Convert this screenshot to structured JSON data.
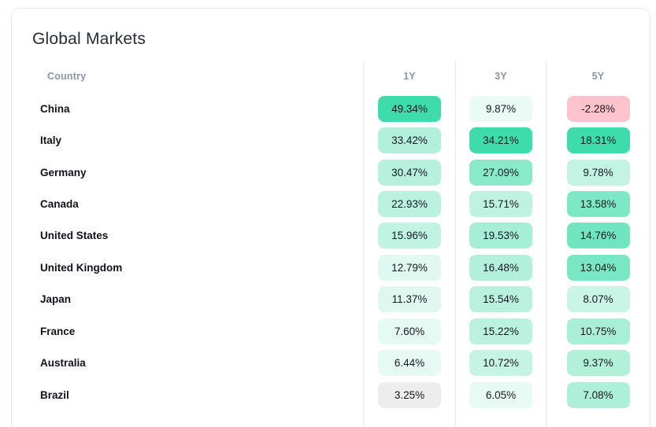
{
  "card": {
    "title": "Global Markets"
  },
  "table": {
    "headers": {
      "country": "Country",
      "periods": [
        "1Y",
        "3Y",
        "5Y"
      ]
    },
    "rows": [
      {
        "country": "China",
        "cells": [
          {
            "value": "49.34%",
            "bg": "#3edcab"
          },
          {
            "value": "9.87%",
            "bg": "#eafbf5"
          },
          {
            "value": "-2.28%",
            "bg": "#ffc3ce"
          }
        ]
      },
      {
        "country": "Italy",
        "cells": [
          {
            "value": "33.42%",
            "bg": "#b3f0db"
          },
          {
            "value": "34.21%",
            "bg": "#3edcab"
          },
          {
            "value": "18.31%",
            "bg": "#3edcab"
          }
        ]
      },
      {
        "country": "Germany",
        "cells": [
          {
            "value": "30.47%",
            "bg": "#b7f1de"
          },
          {
            "value": "27.09%",
            "bg": "#89eaca"
          },
          {
            "value": "9.78%",
            "bg": "#c3f3e2"
          }
        ]
      },
      {
        "country": "Canada",
        "cells": [
          {
            "value": "22.93%",
            "bg": "#bbf2df"
          },
          {
            "value": "15.71%",
            "bg": "#bff2e1"
          },
          {
            "value": "13.58%",
            "bg": "#7de8c5"
          }
        ]
      },
      {
        "country": "United States",
        "cells": [
          {
            "value": "15.96%",
            "bg": "#c1f3e2"
          },
          {
            "value": "19.53%",
            "bg": "#a7eed6"
          },
          {
            "value": "14.76%",
            "bg": "#70e5c0"
          }
        ]
      },
      {
        "country": "United Kingdom",
        "cells": [
          {
            "value": "12.79%",
            "bg": "#e0f9f0"
          },
          {
            "value": "16.48%",
            "bg": "#b2f0db"
          },
          {
            "value": "13.04%",
            "bg": "#79e7c3"
          }
        ]
      },
      {
        "country": "Japan",
        "cells": [
          {
            "value": "11.37%",
            "bg": "#def8ef"
          },
          {
            "value": "15.54%",
            "bg": "#b9f1de"
          },
          {
            "value": "8.07%",
            "bg": "#c9f5e6"
          }
        ]
      },
      {
        "country": "France",
        "cells": [
          {
            "value": "7.60%",
            "bg": "#e5faf2"
          },
          {
            "value": "15.22%",
            "bg": "#bbf2df"
          },
          {
            "value": "10.75%",
            "bg": "#a9efd7"
          }
        ]
      },
      {
        "country": "Australia",
        "cells": [
          {
            "value": "6.44%",
            "bg": "#e6faf3"
          },
          {
            "value": "10.72%",
            "bg": "#c5f4e4"
          },
          {
            "value": "9.37%",
            "bg": "#b3f0da"
          }
        ]
      },
      {
        "country": "Brazil",
        "cells": [
          {
            "value": "3.25%",
            "bg": "#ededee"
          },
          {
            "value": "6.05%",
            "bg": "#e7faf3"
          },
          {
            "value": "7.08%",
            "bg": "#adefd8"
          }
        ]
      }
    ]
  },
  "colors": {
    "positive_strong": "#3edcab",
    "negative": "#ffc3ce",
    "neutral_gray": "#ededee",
    "header_text": "#8b93a7",
    "card_border": "#e8e9ee",
    "column_divider": "#e9ecf0"
  },
  "chart_data": {
    "type": "heatmap",
    "title": "Global Markets",
    "categories": [
      "China",
      "Italy",
      "Germany",
      "Canada",
      "United States",
      "United Kingdom",
      "Japan",
      "France",
      "Australia",
      "Brazil"
    ],
    "series": [
      {
        "name": "1Y",
        "values": [
          49.34,
          33.42,
          30.47,
          22.93,
          15.96,
          12.79,
          11.37,
          7.6,
          6.44,
          3.25
        ]
      },
      {
        "name": "3Y",
        "values": [
          9.87,
          34.21,
          27.09,
          15.71,
          19.53,
          16.48,
          15.54,
          15.22,
          10.72,
          6.05
        ]
      },
      {
        "name": "5Y",
        "values": [
          -2.28,
          18.31,
          9.78,
          13.58,
          14.76,
          13.04,
          8.07,
          10.75,
          9.37,
          7.08
        ]
      }
    ],
    "unit": "%",
    "layout_hints": {
      "scale": "per-column, value relative to column max",
      "color_scale": {
        "max_positive": "#3edcab",
        "low_positive": "#e6faf3",
        "near_zero": "#ededee",
        "negative": "#ffc3ce"
      }
    }
  }
}
